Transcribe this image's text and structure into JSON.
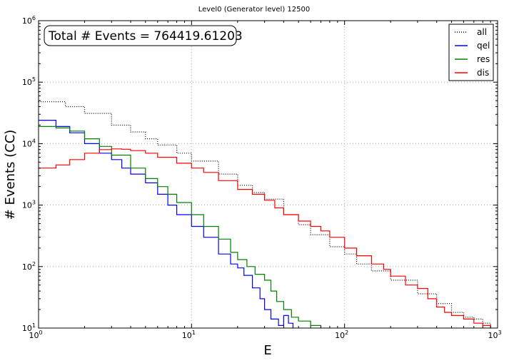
{
  "chart_data": {
    "type": "line",
    "style": "step",
    "title": "Level0 (Generator level) 12500",
    "xlabel": "E",
    "ylabel": "# Events (CC)",
    "xscale": "log",
    "yscale": "log",
    "xlim": [
      1,
      1000
    ],
    "ylim": [
      10,
      1000000
    ],
    "grid": true,
    "legend_position": "top-right",
    "annotation": "Total # Events = 764419.61203",
    "x_ticks": [
      {
        "base": "10",
        "exp": "0"
      },
      {
        "base": "10",
        "exp": "1"
      },
      {
        "base": "10",
        "exp": "2"
      },
      {
        "base": "10",
        "exp": "3"
      }
    ],
    "y_ticks": [
      {
        "base": "10",
        "exp": "1"
      },
      {
        "base": "10",
        "exp": "2"
      },
      {
        "base": "10",
        "exp": "3"
      },
      {
        "base": "10",
        "exp": "4"
      },
      {
        "base": "10",
        "exp": "5"
      },
      {
        "base": "10",
        "exp": "6"
      }
    ],
    "series": [
      {
        "name": "all",
        "color": "#000000",
        "dash": "dotted",
        "points": [
          [
            1,
            48000
          ],
          [
            1.5,
            40000
          ],
          [
            2,
            31000
          ],
          [
            3,
            20000
          ],
          [
            4,
            15500
          ],
          [
            5,
            12000
          ],
          [
            6,
            9500
          ],
          [
            8,
            7000
          ],
          [
            10,
            5200
          ],
          [
            15,
            3200
          ],
          [
            20,
            2100
          ],
          [
            25,
            1600
          ],
          [
            30,
            1250
          ],
          [
            40,
            700
          ],
          [
            50,
            480
          ],
          [
            60,
            330
          ],
          [
            80,
            210
          ],
          [
            100,
            160
          ],
          [
            120,
            110
          ],
          [
            150,
            85
          ],
          [
            200,
            60
          ],
          [
            300,
            36
          ],
          [
            400,
            25
          ],
          [
            500,
            18
          ],
          [
            600,
            15
          ],
          [
            700,
            14
          ],
          [
            800,
            12
          ],
          [
            900,
            10
          ]
        ]
      },
      {
        "name": "qel",
        "color": "#0000ff",
        "dash": "solid",
        "points": [
          [
            1,
            24000
          ],
          [
            1.3,
            19000
          ],
          [
            1.6,
            15000
          ],
          [
            2,
            10000
          ],
          [
            2.5,
            7000
          ],
          [
            3,
            5500
          ],
          [
            3.5,
            4000
          ],
          [
            4,
            3200
          ],
          [
            5,
            2300
          ],
          [
            6,
            1500
          ],
          [
            7,
            1000
          ],
          [
            8,
            700
          ],
          [
            10,
            450
          ],
          [
            12,
            300
          ],
          [
            15,
            160
          ],
          [
            18,
            110
          ],
          [
            20,
            95
          ],
          [
            22,
            72
          ],
          [
            25,
            45
          ],
          [
            28,
            30
          ],
          [
            30,
            20
          ],
          [
            33,
            14
          ],
          [
            37,
            11
          ],
          [
            40,
            16
          ],
          [
            43,
            12
          ],
          [
            46,
            10
          ]
        ]
      },
      {
        "name": "res",
        "color": "#008000",
        "dash": "solid",
        "points": [
          [
            1,
            19000
          ],
          [
            1.3,
            18000
          ],
          [
            1.6,
            16000
          ],
          [
            2,
            12000
          ],
          [
            2.5,
            9000
          ],
          [
            3,
            6500
          ],
          [
            4,
            4000
          ],
          [
            5,
            2700
          ],
          [
            6,
            2000
          ],
          [
            7,
            1500
          ],
          [
            8,
            1100
          ],
          [
            10,
            700
          ],
          [
            12,
            450
          ],
          [
            15,
            280
          ],
          [
            18,
            170
          ],
          [
            20,
            130
          ],
          [
            23,
            100
          ],
          [
            26,
            75
          ],
          [
            30,
            60
          ],
          [
            33,
            40
          ],
          [
            36,
            27
          ],
          [
            40,
            20
          ],
          [
            45,
            15
          ],
          [
            50,
            13
          ],
          [
            60,
            11
          ],
          [
            70,
            10
          ]
        ]
      },
      {
        "name": "dis",
        "color": "#ff0000",
        "dash": "solid",
        "points": [
          [
            1,
            4000
          ],
          [
            1.3,
            4500
          ],
          [
            1.6,
            5500
          ],
          [
            2,
            7000
          ],
          [
            2.5,
            8000
          ],
          [
            3,
            8200
          ],
          [
            3.5,
            8100
          ],
          [
            4,
            7700
          ],
          [
            5,
            7000
          ],
          [
            6,
            6000
          ],
          [
            8,
            4800
          ],
          [
            10,
            4000
          ],
          [
            12,
            3400
          ],
          [
            15,
            2500
          ],
          [
            20,
            1800
          ],
          [
            25,
            1500
          ],
          [
            30,
            1200
          ],
          [
            35,
            900
          ],
          [
            40,
            700
          ],
          [
            50,
            550
          ],
          [
            60,
            450
          ],
          [
            70,
            380
          ],
          [
            80,
            300
          ],
          [
            100,
            200
          ],
          [
            120,
            150
          ],
          [
            150,
            110
          ],
          [
            180,
            90
          ],
          [
            200,
            70
          ],
          [
            250,
            50
          ],
          [
            300,
            44
          ],
          [
            350,
            30
          ],
          [
            400,
            22
          ],
          [
            450,
            18
          ],
          [
            500,
            16
          ],
          [
            600,
            14
          ],
          [
            700,
            12
          ],
          [
            800,
            11
          ],
          [
            900,
            10
          ]
        ]
      }
    ]
  }
}
